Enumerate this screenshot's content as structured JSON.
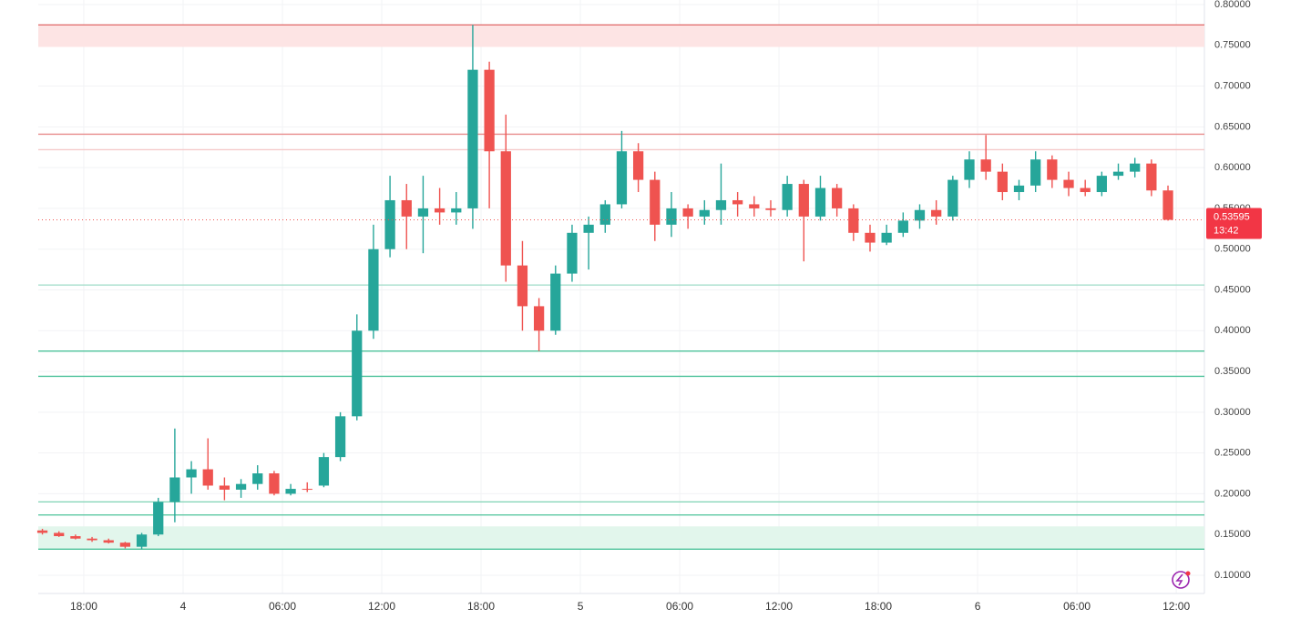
{
  "chart_data": {
    "type": "candlestick",
    "up_color": "#26a69a",
    "down_color": "#ef5350",
    "grid": true,
    "xlim": [
      -2.75,
      67.7
    ],
    "xticks": [
      {
        "value": 0,
        "label": "18:00"
      },
      {
        "value": 6,
        "label": "4"
      },
      {
        "value": 12,
        "label": "06:00"
      },
      {
        "value": 18,
        "label": "12:00"
      },
      {
        "value": 24,
        "label": "18:00"
      },
      {
        "value": 30,
        "label": "5"
      },
      {
        "value": 36,
        "label": "06:00"
      },
      {
        "value": 42,
        "label": "12:00"
      },
      {
        "value": 48,
        "label": "18:00"
      },
      {
        "value": 54,
        "label": "6"
      },
      {
        "value": 60,
        "label": "06:00"
      },
      {
        "value": 66,
        "label": "12:00"
      }
    ],
    "ylim": [
      0.1,
      0.8
    ],
    "yticks": [
      {
        "value": 0.1,
        "label": "0.10000"
      },
      {
        "value": 0.15,
        "label": "0.15000"
      },
      {
        "value": 0.2,
        "label": "0.20000"
      },
      {
        "value": 0.25,
        "label": "0.25000"
      },
      {
        "value": 0.3,
        "label": "0.30000"
      },
      {
        "value": 0.35,
        "label": "0.35000"
      },
      {
        "value": 0.4,
        "label": "0.40000"
      },
      {
        "value": 0.45,
        "label": "0.45000"
      },
      {
        "value": 0.5,
        "label": "0.50000"
      },
      {
        "value": 0.55,
        "label": "0.55000"
      },
      {
        "value": 0.6,
        "label": "0.60000"
      },
      {
        "value": 0.65,
        "label": "0.65000"
      },
      {
        "value": 0.7,
        "label": "0.70000"
      },
      {
        "value": 0.75,
        "label": "0.75000"
      },
      {
        "value": 0.8,
        "label": "0.80000"
      }
    ],
    "x": [
      -2.5,
      -1.5,
      -0.5,
      0.5,
      1.5,
      2.5,
      3.5,
      4.5,
      5.5,
      6.5,
      7.5,
      8.5,
      9.5,
      10.5,
      11.5,
      12.5,
      13.5,
      14.5,
      15.5,
      16.5,
      17.5,
      18.5,
      19.5,
      20.5,
      21.5,
      22.5,
      23.5,
      24.5,
      25.5,
      26.5,
      27.5,
      28.5,
      29.5,
      30.5,
      31.5,
      32.5,
      33.5,
      34.5,
      35.5,
      36.5,
      37.5,
      38.5,
      39.5,
      40.5,
      41.5,
      42.5,
      43.5,
      44.5,
      45.5,
      46.5,
      47.5,
      48.5,
      49.5,
      50.5,
      51.5,
      52.5,
      53.5,
      54.5,
      55.5,
      56.5,
      57.5,
      58.5,
      59.5,
      60.5,
      61.5,
      62.5,
      63.5,
      64.5,
      65.5
    ],
    "open": [
      0.155,
      0.152,
      0.148,
      0.145,
      0.143,
      0.14,
      0.135,
      0.15,
      0.19,
      0.22,
      0.23,
      0.21,
      0.205,
      0.212,
      0.225,
      0.2,
      0.206,
      0.21,
      0.245,
      0.295,
      0.4,
      0.5,
      0.56,
      0.54,
      0.55,
      0.545,
      0.55,
      0.72,
      0.62,
      0.48,
      0.43,
      0.4,
      0.47,
      0.52,
      0.53,
      0.555,
      0.62,
      0.585,
      0.53,
      0.55,
      0.54,
      0.548,
      0.56,
      0.555,
      0.55,
      0.548,
      0.58,
      0.54,
      0.575,
      0.55,
      0.52,
      0.508,
      0.52,
      0.535,
      0.548,
      0.54,
      0.585,
      0.61,
      0.595,
      0.57,
      0.578,
      0.61,
      0.585,
      0.575,
      0.57,
      0.59,
      0.595,
      0.605,
      0.572
    ],
    "high": [
      0.157,
      0.154,
      0.15,
      0.147,
      0.145,
      0.141,
      0.152,
      0.195,
      0.28,
      0.24,
      0.268,
      0.22,
      0.218,
      0.235,
      0.228,
      0.212,
      0.214,
      0.25,
      0.3,
      0.42,
      0.53,
      0.59,
      0.58,
      0.59,
      0.575,
      0.57,
      0.775,
      0.73,
      0.665,
      0.51,
      0.44,
      0.48,
      0.53,
      0.54,
      0.56,
      0.645,
      0.63,
      0.595,
      0.57,
      0.555,
      0.56,
      0.605,
      0.57,
      0.565,
      0.56,
      0.59,
      0.585,
      0.59,
      0.58,
      0.555,
      0.53,
      0.53,
      0.545,
      0.555,
      0.56,
      0.59,
      0.62,
      0.64,
      0.605,
      0.585,
      0.62,
      0.615,
      0.595,
      0.585,
      0.595,
      0.605,
      0.612,
      0.61,
      0.578
    ],
    "low": [
      0.15,
      0.147,
      0.144,
      0.141,
      0.139,
      0.133,
      0.132,
      0.148,
      0.165,
      0.2,
      0.205,
      0.192,
      0.195,
      0.205,
      0.198,
      0.198,
      0.202,
      0.208,
      0.24,
      0.29,
      0.39,
      0.49,
      0.5,
      0.495,
      0.53,
      0.53,
      0.525,
      0.55,
      0.46,
      0.4,
      0.375,
      0.395,
      0.46,
      0.475,
      0.52,
      0.55,
      0.57,
      0.51,
      0.515,
      0.525,
      0.53,
      0.53,
      0.54,
      0.54,
      0.54,
      0.54,
      0.485,
      0.535,
      0.54,
      0.51,
      0.497,
      0.505,
      0.515,
      0.525,
      0.53,
      0.535,
      0.575,
      0.585,
      0.56,
      0.56,
      0.57,
      0.575,
      0.565,
      0.565,
      0.565,
      0.585,
      0.588,
      0.565,
      0.535
    ],
    "close": [
      0.152,
      0.148,
      0.145,
      0.143,
      0.14,
      0.135,
      0.15,
      0.19,
      0.22,
      0.23,
      0.21,
      0.205,
      0.212,
      0.225,
      0.2,
      0.206,
      0.205,
      0.245,
      0.295,
      0.4,
      0.5,
      0.56,
      0.54,
      0.55,
      0.545,
      0.55,
      0.72,
      0.62,
      0.48,
      0.43,
      0.4,
      0.47,
      0.52,
      0.53,
      0.555,
      0.62,
      0.585,
      0.53,
      0.55,
      0.54,
      0.548,
      0.56,
      0.555,
      0.55,
      0.548,
      0.58,
      0.54,
      0.575,
      0.55,
      0.52,
      0.508,
      0.52,
      0.535,
      0.548,
      0.54,
      0.585,
      0.61,
      0.595,
      0.57,
      0.578,
      0.61,
      0.585,
      0.575,
      0.57,
      0.59,
      0.595,
      0.605,
      0.572,
      0.53595
    ],
    "zones": [
      {
        "from": 0.748,
        "to": 0.775,
        "color": "#fde4e4"
      },
      {
        "from": 0.132,
        "to": 0.16,
        "color": "#e2f6ec"
      }
    ],
    "levels": [
      {
        "value": 0.775,
        "color": "#e06666"
      },
      {
        "value": 0.641,
        "color": "#e88c8c"
      },
      {
        "value": 0.622,
        "color": "#f5caca"
      },
      {
        "value": 0.456,
        "color": "#9fdcc8"
      },
      {
        "value": 0.375,
        "color": "#4cc29a"
      },
      {
        "value": 0.344,
        "color": "#4cc29a"
      },
      {
        "value": 0.19,
        "color": "#7fd3b4"
      },
      {
        "value": 0.174,
        "color": "#4cc29a"
      },
      {
        "value": 0.132,
        "color": "#4cc29a"
      }
    ],
    "last_price": 0.53595,
    "countdown": "13:42"
  }
}
